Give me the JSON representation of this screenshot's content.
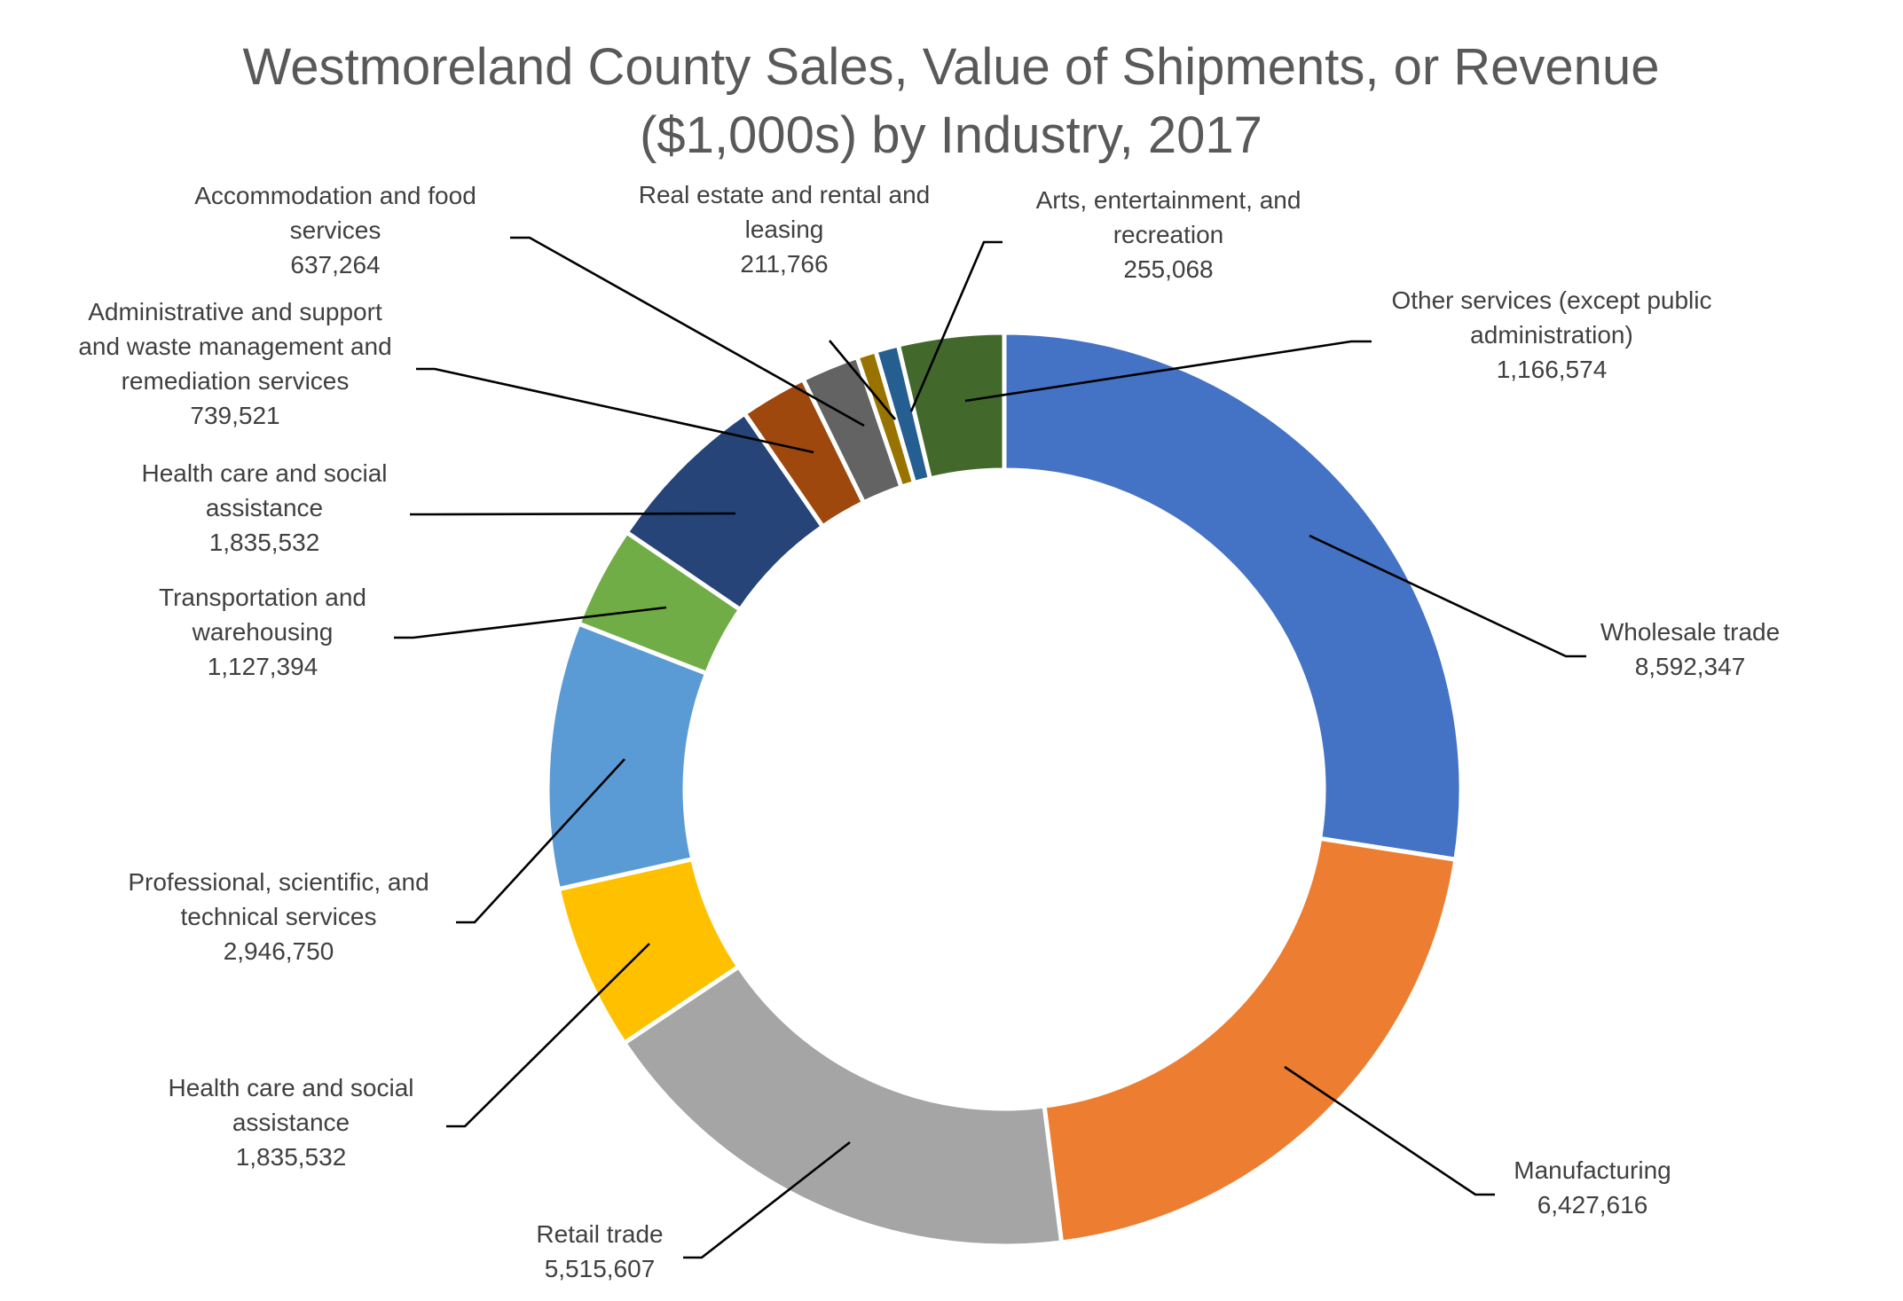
{
  "chart_data": {
    "type": "pie",
    "style": "donut",
    "title": "Westmoreland County Sales, Value of Shipments, or Revenue ($1,000s) by Industry, 2017",
    "title_lines": [
      "Westmoreland County Sales, Value of Shipments, or Revenue",
      "($1,000s) by Industry, 2017"
    ],
    "legend": "none",
    "slices": [
      {
        "label": "Wholesale trade",
        "label_lines": [
          "Wholesale trade"
        ],
        "value_text": "8,592,347",
        "value": 8592347,
        "color": "#4472C4"
      },
      {
        "label": "Manufacturing",
        "label_lines": [
          "Manufacturing"
        ],
        "value_text": "6,427,616",
        "value": 6427616,
        "color": "#ED7D31"
      },
      {
        "label": "Retail trade",
        "label_lines": [
          "Retail trade"
        ],
        "value_text": "5,515,607",
        "value": 5515607,
        "color": "#A5A5A5"
      },
      {
        "label": "Health care and social assistance",
        "label_lines": [
          "Health care and social",
          "assistance"
        ],
        "value_text": "1,835,532",
        "value": 1835532,
        "color": "#FFC000"
      },
      {
        "label": "Professional, scientific, and technical services",
        "label_lines": [
          "Professional, scientific, and",
          "technical services"
        ],
        "value_text": "2,946,750",
        "value": 2946750,
        "color": "#5B9BD5"
      },
      {
        "label": "Transportation and warehousing",
        "label_lines": [
          "Transportation and",
          "warehousing"
        ],
        "value_text": "1,127,394",
        "value": 1127394,
        "color": "#70AD47"
      },
      {
        "label": "Health care and social assistance",
        "label_lines": [
          "Health care and social",
          "assistance"
        ],
        "value_text": "1,835,532",
        "value": 1835532,
        "color": "#264478"
      },
      {
        "label": "Administrative and support and waste management and remediation services",
        "label_lines": [
          "Administrative and support",
          "and waste management and",
          "remediation services"
        ],
        "value_text": "739,521",
        "value": 739521,
        "color": "#9E480E"
      },
      {
        "label": "Accommodation and food services",
        "label_lines": [
          "Accommodation and food",
          "services"
        ],
        "value_text": "637,264",
        "value": 637264,
        "color": "#636363"
      },
      {
        "label": "Real estate and rental and leasing",
        "label_lines": [
          "Real estate and rental and",
          "leasing"
        ],
        "value_text": "211,766",
        "value": 211766,
        "color": "#997300"
      },
      {
        "label": "Arts, entertainment, and recreation",
        "label_lines": [
          "Arts, entertainment, and",
          "recreation"
        ],
        "value_text": "255,068",
        "value": 255068,
        "color": "#255E91"
      },
      {
        "label": "Other services (except public administration)",
        "label_lines": [
          "Other services (except public",
          "administration)"
        ],
        "value_text": "1,166,574",
        "value": 1166574,
        "color": "#43682B"
      }
    ]
  }
}
